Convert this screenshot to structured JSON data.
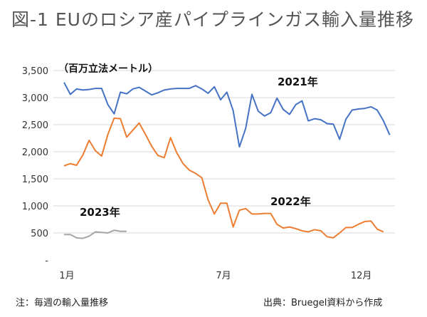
{
  "title": "図-1 EUのロシア産パイプラインガス輸入量推移",
  "notes": {
    "left": "注：毎週の輸入量推移",
    "right": "出典：Bruegel資料から作成"
  },
  "chart_data": {
    "type": "line",
    "unit_label": "（百万立法メートル）",
    "ylim": [
      0,
      3500
    ],
    "yticks": [
      0,
      500,
      1000,
      1500,
      2000,
      2500,
      3000,
      3500
    ],
    "ytick_labels": [
      "-",
      "500",
      "1,000",
      "1,500",
      "2,000",
      "2,500",
      "3,000",
      "3,500"
    ],
    "xtick_labels": [
      {
        "label": "1月",
        "week": 1
      },
      {
        "label": "7月",
        "week": 26
      },
      {
        "label": "12月",
        "week": 48
      }
    ],
    "grid": true,
    "series": [
      {
        "name": "2021年",
        "color": "#4472c4",
        "values": [
          3280,
          3060,
          3160,
          3140,
          3150,
          3170,
          3170,
          2870,
          2700,
          3100,
          3070,
          3160,
          3190,
          3120,
          3050,
          3090,
          3140,
          3160,
          3170,
          3170,
          3170,
          3220,
          3160,
          3080,
          3200,
          2960,
          3100,
          2760,
          2090,
          2430,
          3060,
          2750,
          2660,
          2720,
          2990,
          2780,
          2690,
          2870,
          2940,
          2570,
          2610,
          2590,
          2520,
          2510,
          2230,
          2600,
          2770,
          2790,
          2800,
          2830,
          2770,
          2570,
          2310
        ]
      },
      {
        "name": "2022年",
        "color": "#ed7d31",
        "values": [
          1740,
          1780,
          1750,
          1940,
          2210,
          2020,
          1920,
          2320,
          2620,
          2610,
          2270,
          2400,
          2530,
          2320,
          2100,
          1930,
          1890,
          2260,
          1980,
          1780,
          1660,
          1600,
          1520,
          1110,
          850,
          1050,
          1050,
          610,
          920,
          950,
          850,
          850,
          860,
          860,
          660,
          590,
          610,
          580,
          540,
          520,
          560,
          540,
          430,
          410,
          500,
          600,
          600,
          660,
          710,
          720,
          570,
          520
        ]
      },
      {
        "name": "2023年",
        "color": "#a5a5a5",
        "values": [
          470,
          470,
          410,
          400,
          440,
          520,
          510,
          500,
          550,
          530,
          530
        ]
      }
    ]
  }
}
